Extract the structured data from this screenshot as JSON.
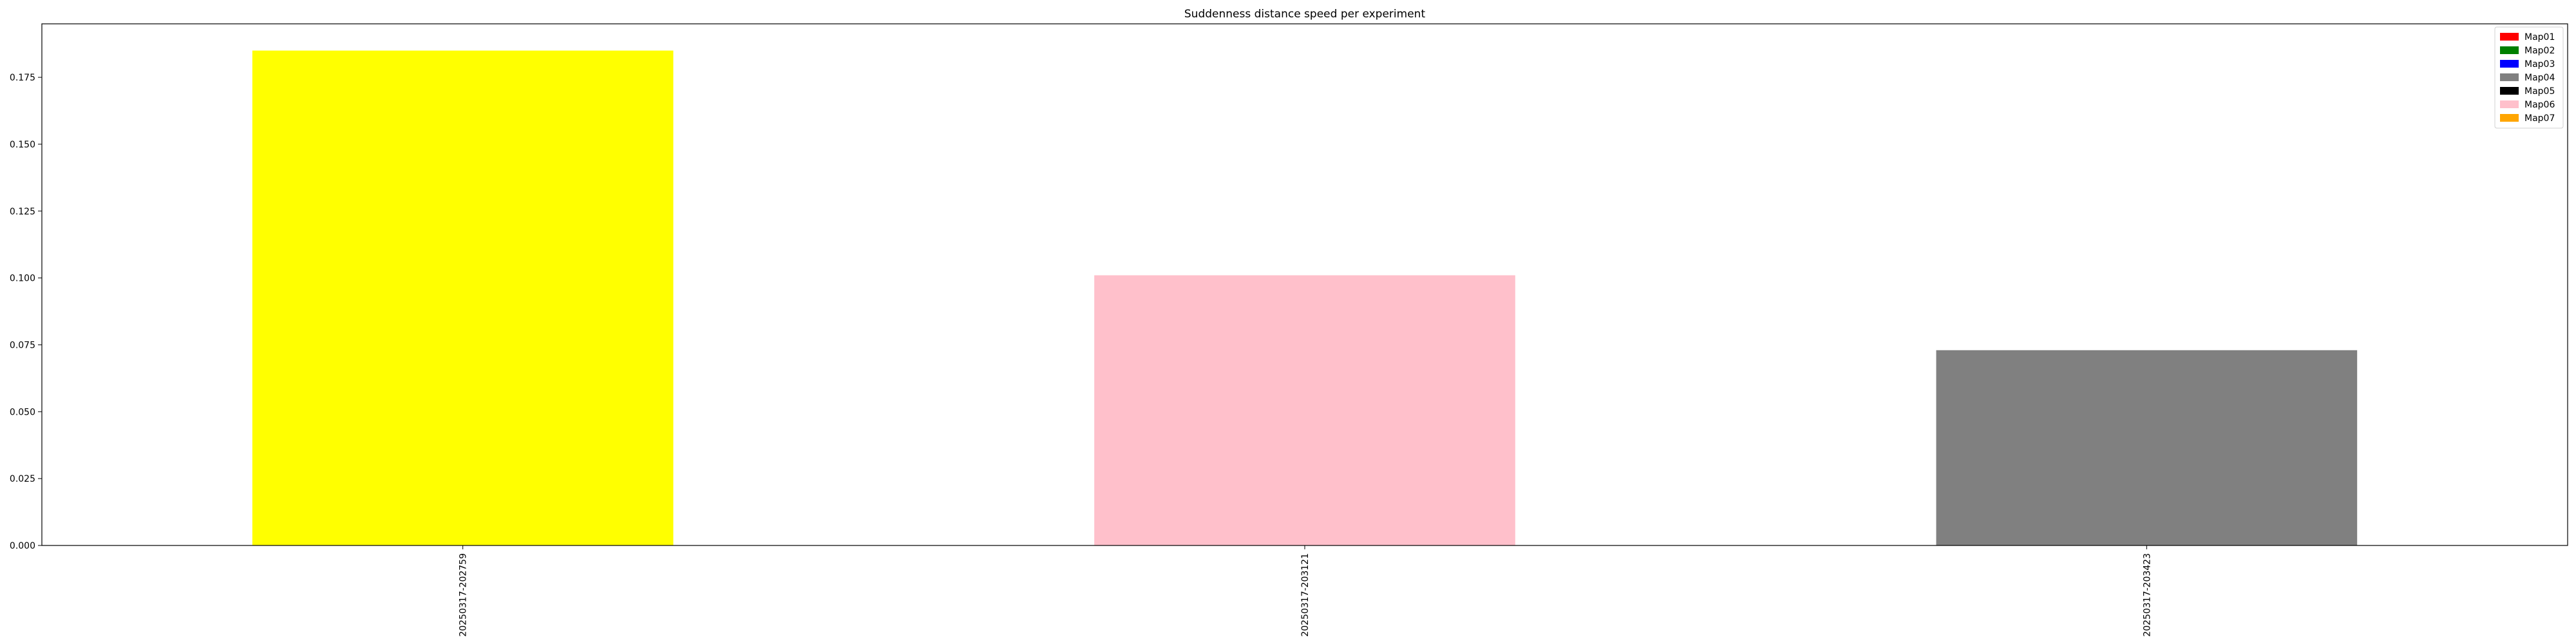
{
  "chart_data": {
    "type": "bar",
    "title": "Suddenness distance speed per experiment",
    "xlabel": "",
    "ylabel": "",
    "categories": [
      "20250317-202759",
      "20250317-203121",
      "20250317-203423"
    ],
    "values": [
      0.185,
      0.101,
      0.073
    ],
    "bar_colors": [
      "#ffff00",
      "#ffc0cb",
      "#808080"
    ],
    "ylim": [
      0,
      0.195
    ],
    "yticks": [
      "0.000",
      "0.025",
      "0.050",
      "0.075",
      "0.100",
      "0.125",
      "0.150",
      "0.175"
    ],
    "grid": false,
    "legend_position": "top-right",
    "legend": [
      {
        "label": "Map01",
        "color": "#ff0000"
      },
      {
        "label": "Map02",
        "color": "#008000"
      },
      {
        "label": "Map03",
        "color": "#0000ff"
      },
      {
        "label": "Map04",
        "color": "#808080"
      },
      {
        "label": "Map05",
        "color": "#000000"
      },
      {
        "label": "Map06",
        "color": "#ffc0cb"
      },
      {
        "label": "Map07",
        "color": "#ffa500"
      }
    ]
  }
}
